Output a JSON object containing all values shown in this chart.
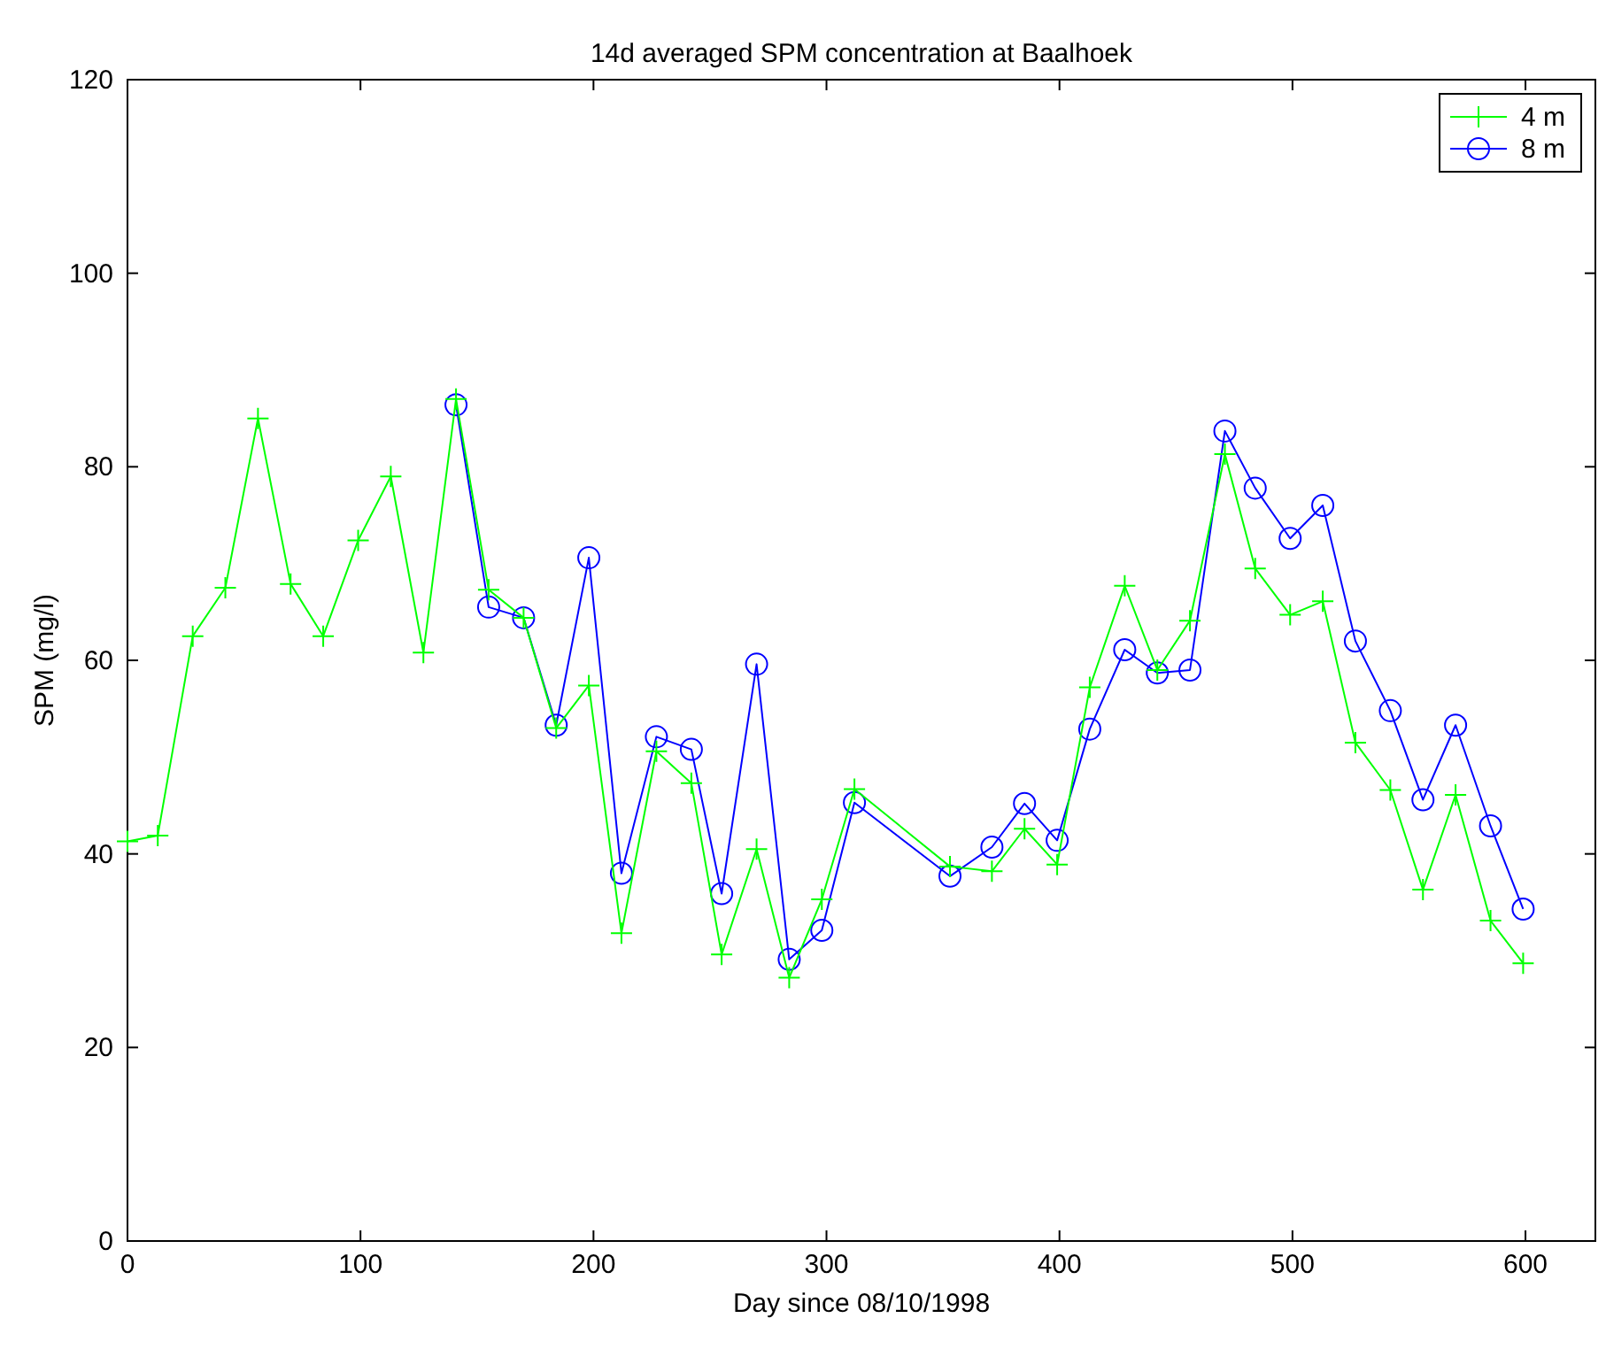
{
  "chart_data": {
    "type": "line",
    "title": "14d averaged SPM concentration at Baalhoek",
    "xlabel": "Day since 08/10/1998",
    "ylabel": "SPM (mg/l)",
    "xlim": [
      0,
      630
    ],
    "xticks": [
      0,
      100,
      200,
      300,
      400,
      500,
      600
    ],
    "ylim": [
      0,
      120
    ],
    "yticks": [
      0,
      20,
      40,
      60,
      80,
      100,
      120
    ],
    "grid": false,
    "legend": "top right",
    "line_style": "solid",
    "series": [
      {
        "name": "4 m",
        "color": "#00ff00",
        "marker": "cross",
        "x": [
          0,
          13,
          28,
          42,
          56,
          70,
          84,
          99,
          113,
          127,
          141,
          155,
          170,
          184,
          198,
          212,
          227,
          242,
          255,
          270,
          284,
          298,
          312,
          353,
          371,
          385,
          399,
          413,
          428,
          442,
          456,
          471,
          484,
          499,
          513,
          527,
          542,
          556,
          570,
          585,
          599
        ],
        "values": [
          41.3,
          41.9,
          62.5,
          67.5,
          85.0,
          67.9,
          62.5,
          72.4,
          79.0,
          60.8,
          87.0,
          67.3,
          64.4,
          53.0,
          57.4,
          31.8,
          50.6,
          47.3,
          29.6,
          40.5,
          27.2,
          35.3,
          46.7,
          38.7,
          38.2,
          42.6,
          38.9,
          57.2,
          67.7,
          59.0,
          64.1,
          81.3,
          69.5,
          64.7,
          66.1,
          51.5,
          46.6,
          36.3,
          46.1,
          33.1,
          28.7
        ]
      },
      {
        "name": "8 m",
        "color": "#0000ff",
        "marker": "circle",
        "x": [
          141,
          155,
          170,
          184,
          198,
          212,
          227,
          242,
          255,
          270,
          284,
          298,
          312,
          353,
          371,
          385,
          399,
          413,
          428,
          442,
          456,
          471,
          484,
          499,
          513,
          527,
          542,
          556,
          570,
          585,
          599
        ],
        "values": [
          86.4,
          65.5,
          64.4,
          53.3,
          70.6,
          38.0,
          52.1,
          50.8,
          35.9,
          59.6,
          29.1,
          32.1,
          45.3,
          37.7,
          40.7,
          45.2,
          41.4,
          52.9,
          61.1,
          58.7,
          59.0,
          83.7,
          77.8,
          72.6,
          76.0,
          62.0,
          54.8,
          45.6,
          53.3,
          42.9,
          34.3
        ]
      }
    ]
  }
}
